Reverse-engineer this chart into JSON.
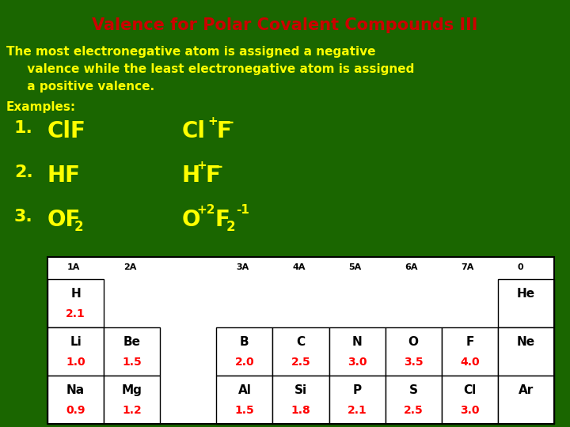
{
  "title": "Valence for Polar Covalent Compounds III",
  "title_color": "#cc0000",
  "bg_color": "#1a6600",
  "text_color": "#ffff00",
  "body_line1": "The most electronegative atom is assigned a negative",
  "body_line2": "     valence while the least electronegative atom is assigned",
  "body_line3": "     a positive valence.",
  "examples_label": "Examples:",
  "elements": {
    "row0": [
      {
        "sym": "H",
        "en": "2.1",
        "col": 0,
        "row": 1
      },
      {
        "sym": "He",
        "en": "",
        "col": 8,
        "row": 1
      }
    ],
    "row1": [
      {
        "sym": "Li",
        "en": "1.0",
        "col": 0,
        "row": 2
      },
      {
        "sym": "Be",
        "en": "1.5",
        "col": 1,
        "row": 2
      },
      {
        "sym": "B",
        "en": "2.0",
        "col": 3,
        "row": 2
      },
      {
        "sym": "C",
        "en": "2.5",
        "col": 4,
        "row": 2
      },
      {
        "sym": "N",
        "en": "3.0",
        "col": 5,
        "row": 2
      },
      {
        "sym": "O",
        "en": "3.5",
        "col": 6,
        "row": 2
      },
      {
        "sym": "F",
        "en": "4.0",
        "col": 7,
        "row": 2
      },
      {
        "sym": "Ne",
        "en": "",
        "col": 8,
        "row": 2
      }
    ],
    "row2": [
      {
        "sym": "Na",
        "en": "0.9",
        "col": 0,
        "row": 3
      },
      {
        "sym": "Mg",
        "en": "1.2",
        "col": 1,
        "row": 3
      },
      {
        "sym": "Al",
        "en": "1.5",
        "col": 3,
        "row": 3
      },
      {
        "sym": "Si",
        "en": "1.8",
        "col": 4,
        "row": 3
      },
      {
        "sym": "P",
        "en": "2.1",
        "col": 5,
        "row": 3
      },
      {
        "sym": "S",
        "en": "2.5",
        "col": 6,
        "row": 3
      },
      {
        "sym": "Cl",
        "en": "3.0",
        "col": 7,
        "row": 3
      },
      {
        "sym": "Ar",
        "en": "",
        "col": 8,
        "row": 3
      }
    ]
  },
  "group_labels": {
    "0": "1A",
    "1": "2A",
    "3": "3A",
    "4": "4A",
    "5": "5A",
    "6": "6A",
    "7": "7A",
    "8": "0"
  },
  "title_fontsize": 15,
  "body_fontsize": 11,
  "example_num_fontsize": 16,
  "example_formula_fontsize": 20,
  "example_super_fontsize": 11,
  "example_sub_fontsize": 12,
  "table_sym_fontsize": 11,
  "table_en_fontsize": 10,
  "table_label_fontsize": 8
}
